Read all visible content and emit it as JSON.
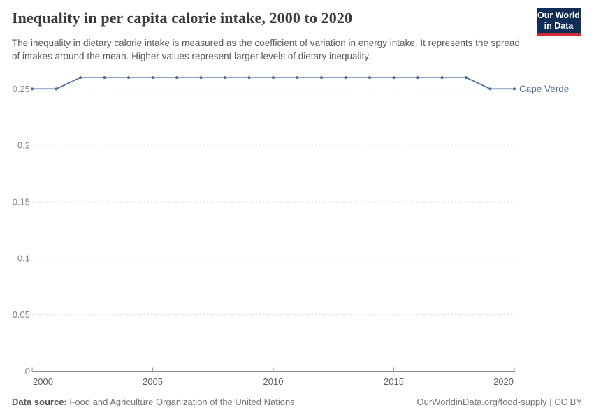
{
  "header": {
    "title": "Inequality in per capita calorie intake, 2000 to 2020",
    "subtitle": "The inequality in dietary calorie intake is measured as the coefficient of variation in energy intake. It represents the spread of intakes around the mean. Higher values represent larger levels of dietary inequality.",
    "logo": {
      "line1": "Our World",
      "line2": "in Data"
    }
  },
  "chart_data": {
    "type": "line",
    "title": "Inequality in per capita calorie intake, 2000 to 2020",
    "xlabel": "",
    "ylabel": "",
    "xlim": [
      2000,
      2020
    ],
    "ylim": [
      0,
      0.27
    ],
    "x_ticks": [
      2000,
      2005,
      2010,
      2015,
      2020
    ],
    "y_ticks": [
      0,
      0.05,
      0.1,
      0.15,
      0.2,
      0.25
    ],
    "y_tick_labels": [
      "0",
      "0.05",
      "0.1",
      "0.15",
      "0.2",
      "0.25"
    ],
    "grid": "horizontal-dashed",
    "legend_position": "end-of-line",
    "series": [
      {
        "name": "Cape Verde",
        "color": "#4c6a9c",
        "x": [
          2000,
          2001,
          2002,
          2003,
          2004,
          2005,
          2006,
          2007,
          2008,
          2009,
          2010,
          2011,
          2012,
          2013,
          2014,
          2015,
          2016,
          2017,
          2018,
          2019,
          2020
        ],
        "values": [
          0.25,
          0.25,
          0.26,
          0.26,
          0.26,
          0.26,
          0.26,
          0.26,
          0.26,
          0.26,
          0.26,
          0.26,
          0.26,
          0.26,
          0.26,
          0.26,
          0.26,
          0.26,
          0.26,
          0.25,
          0.25
        ]
      }
    ]
  },
  "footer": {
    "source_label": "Data source:",
    "source_value": "Food and Agriculture Organization of the United Nations",
    "credit": "OurWorldinData.org/food-supply | CC BY"
  },
  "colors": {
    "series_blue": "#4c6a9c",
    "logo_navy": "#0f2d55",
    "logo_red": "#d12b35",
    "gridline": "#dcdcdc",
    "axis": "#8f8f8f"
  }
}
